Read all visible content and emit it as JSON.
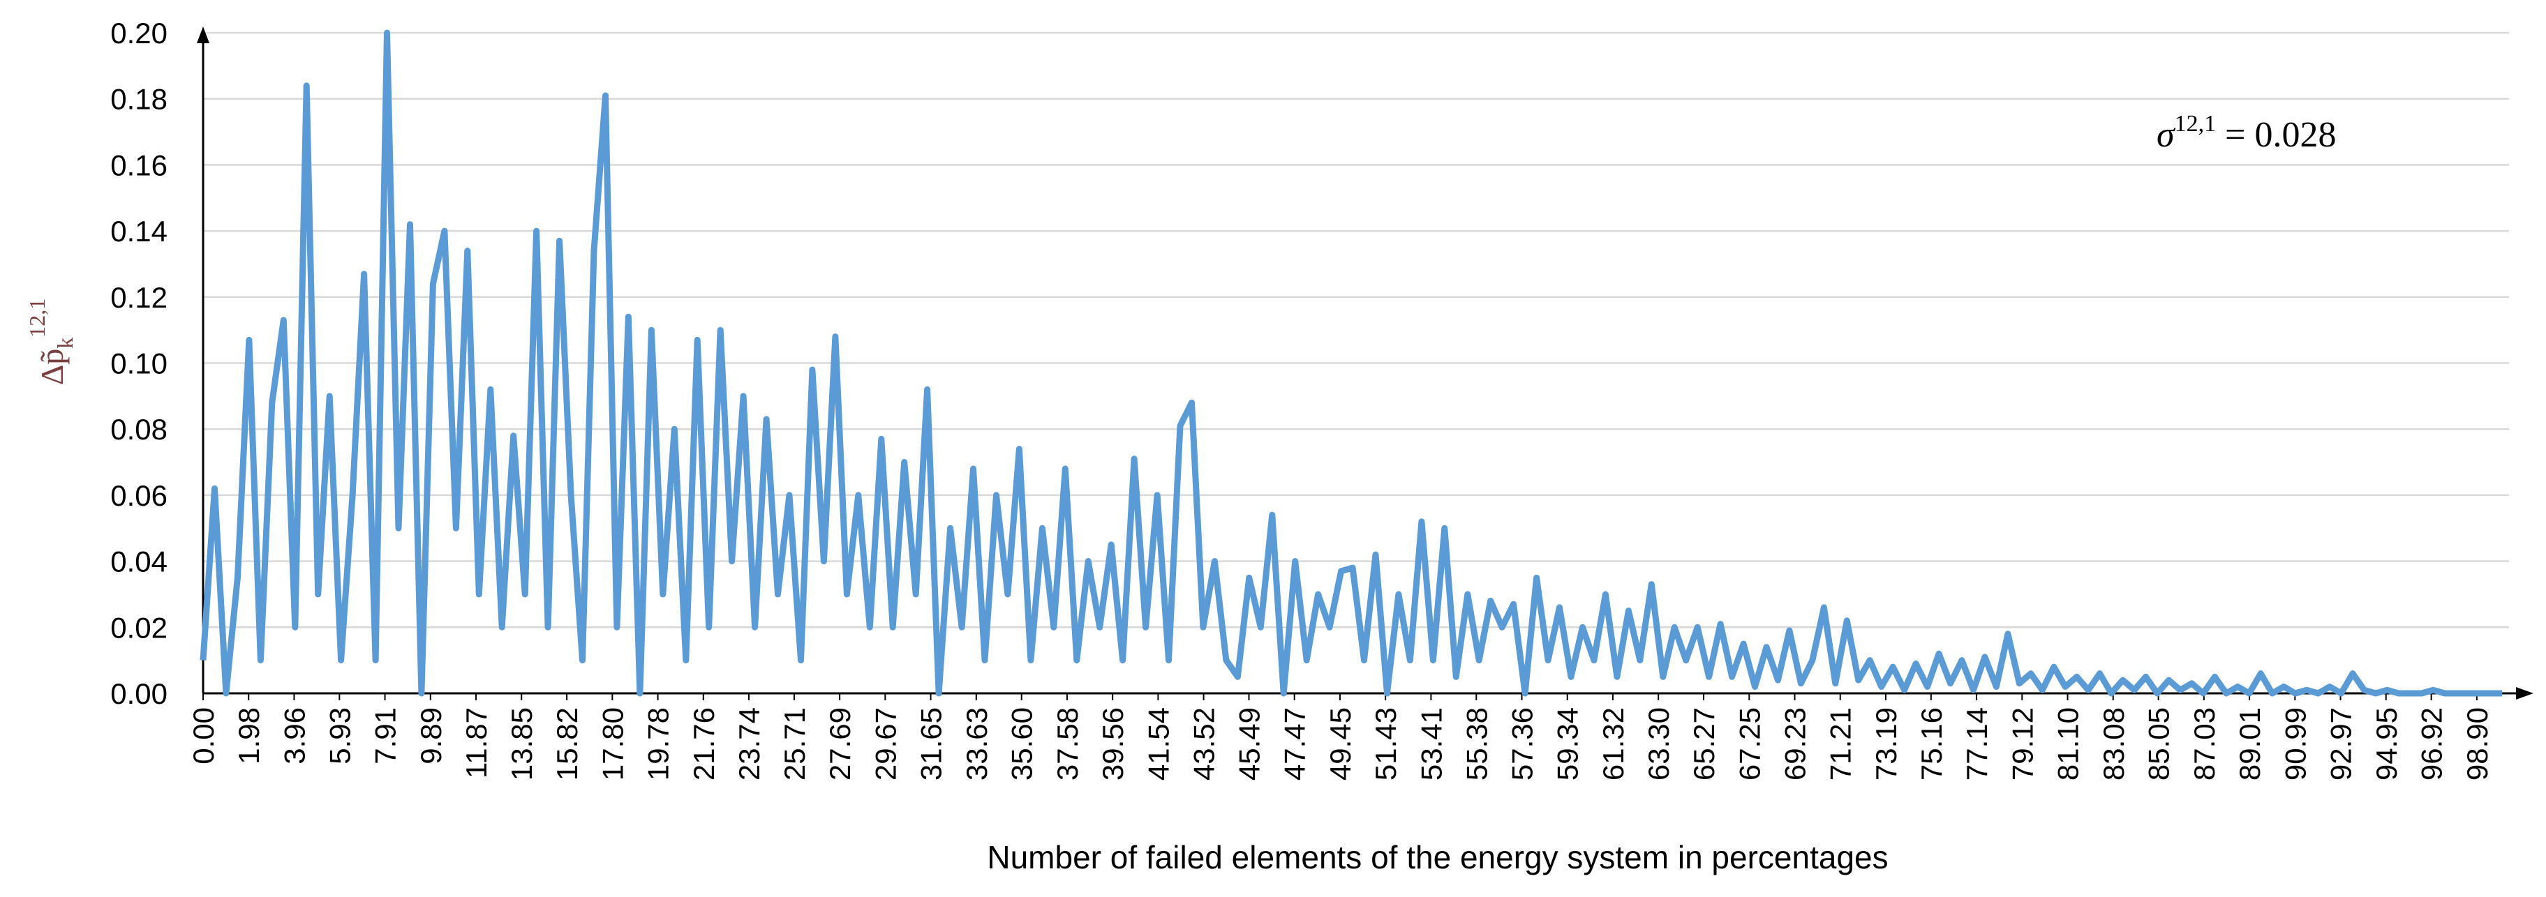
{
  "chart_data": {
    "type": "line",
    "xlabel": "Number  of failed elements of the energy system in percentages",
    "ylabel_parts": [
      "Δp̃",
      "k",
      "12,1"
    ],
    "annotation_parts": [
      "σ",
      "12,1",
      " = 0.028"
    ],
    "xlim": [
      0,
      100.3
    ],
    "ylim": [
      0,
      0.2
    ],
    "yticks": [
      {
        "value": 0,
        "label": "0.00"
      },
      {
        "value": 0.02,
        "label": "0.02"
      },
      {
        "value": 0.04,
        "label": "0.04"
      },
      {
        "value": 0.06,
        "label": "0.06"
      },
      {
        "value": 0.08,
        "label": "0.08"
      },
      {
        "value": 0.1,
        "label": "0.10"
      },
      {
        "value": 0.12,
        "label": "0.12"
      },
      {
        "value": 0.14,
        "label": "0.14"
      },
      {
        "value": 0.16,
        "label": "0.16"
      },
      {
        "value": 0.18,
        "label": "0.18"
      },
      {
        "value": 0.2,
        "label": "0.20"
      }
    ],
    "xticks": [
      {
        "value": 0,
        "label": "0.00"
      },
      {
        "value": 1.98,
        "label": "1.98"
      },
      {
        "value": 3.96,
        "label": "3.96"
      },
      {
        "value": 5.93,
        "label": "5.93"
      },
      {
        "value": 7.91,
        "label": "7.91"
      },
      {
        "value": 9.89,
        "label": "9.89"
      },
      {
        "value": 11.87,
        "label": "11.87"
      },
      {
        "value": 13.85,
        "label": "13.85"
      },
      {
        "value": 15.82,
        "label": "15.82"
      },
      {
        "value": 17.8,
        "label": "17.80"
      },
      {
        "value": 19.78,
        "label": "19.78"
      },
      {
        "value": 21.76,
        "label": "21.76"
      },
      {
        "value": 23.74,
        "label": "23.74"
      },
      {
        "value": 25.71,
        "label": "25.71"
      },
      {
        "value": 27.69,
        "label": "27.69"
      },
      {
        "value": 29.67,
        "label": "29.67"
      },
      {
        "value": 31.65,
        "label": "31.65"
      },
      {
        "value": 33.63,
        "label": "33.63"
      },
      {
        "value": 35.6,
        "label": "35.60"
      },
      {
        "value": 37.58,
        "label": "37.58"
      },
      {
        "value": 39.56,
        "label": "39.56"
      },
      {
        "value": 41.54,
        "label": "41.54"
      },
      {
        "value": 43.52,
        "label": "43.52"
      },
      {
        "value": 45.49,
        "label": "45.49"
      },
      {
        "value": 47.47,
        "label": "47.47"
      },
      {
        "value": 49.45,
        "label": "49.45"
      },
      {
        "value": 51.43,
        "label": "51.43"
      },
      {
        "value": 53.41,
        "label": "53.41"
      },
      {
        "value": 55.38,
        "label": "55.38"
      },
      {
        "value": 57.36,
        "label": "57.36"
      },
      {
        "value": 59.34,
        "label": "59.34"
      },
      {
        "value": 61.32,
        "label": "61.32"
      },
      {
        "value": 63.3,
        "label": "63.30"
      },
      {
        "value": 65.27,
        "label": "65.27"
      },
      {
        "value": 67.25,
        "label": "67.25"
      },
      {
        "value": 69.23,
        "label": "69.23"
      },
      {
        "value": 71.21,
        "label": "71.21"
      },
      {
        "value": 73.19,
        "label": "73.19"
      },
      {
        "value": 75.16,
        "label": "75.16"
      },
      {
        "value": 77.14,
        "label": "77.14"
      },
      {
        "value": 79.12,
        "label": "79.12"
      },
      {
        "value": 81.1,
        "label": "81.10"
      },
      {
        "value": 83.08,
        "label": "83.08"
      },
      {
        "value": 85.05,
        "label": "85.05"
      },
      {
        "value": 87.03,
        "label": "87.03"
      },
      {
        "value": 89.01,
        "label": "89.01"
      },
      {
        "value": 90.99,
        "label": "90.99"
      },
      {
        "value": 92.97,
        "label": "92.97"
      },
      {
        "value": 94.95,
        "label": "94.95"
      },
      {
        "value": 96.92,
        "label": "96.92"
      },
      {
        "value": 98.9,
        "label": "98.90"
      }
    ],
    "grid": true,
    "series": [
      {
        "color": "#5b9bd5",
        "x": [
          0,
          0.5,
          1,
          1.5,
          2,
          2.5,
          3,
          3.5,
          4,
          4.5,
          5,
          5.5,
          6,
          6.5,
          7,
          7.5,
          8,
          8.5,
          9,
          9.5,
          10,
          10.5,
          11,
          11.5,
          12,
          12.5,
          13,
          13.5,
          14,
          14.5,
          15,
          15.5,
          16,
          16.5,
          17,
          17.5,
          18,
          18.5,
          19,
          19.5,
          20,
          20.5,
          21,
          21.5,
          22,
          22.5,
          23,
          23.5,
          24,
          24.5,
          25,
          25.5,
          26,
          26.5,
          27,
          27.5,
          28,
          28.5,
          29,
          29.5,
          30,
          30.5,
          31,
          31.5,
          32,
          32.5,
          33,
          33.5,
          34,
          34.5,
          35,
          35.5,
          36,
          36.5,
          37,
          37.5,
          38,
          38.5,
          39,
          39.5,
          40,
          40.5,
          41,
          41.5,
          42,
          42.5,
          43,
          43.5,
          44,
          44.5,
          45,
          45.5,
          46,
          46.5,
          47,
          47.5,
          48,
          48.5,
          49,
          49.5,
          50,
          50.5,
          51,
          51.5,
          52,
          52.5,
          53,
          53.5,
          54,
          54.5,
          55,
          55.5,
          56,
          56.5,
          57,
          57.5,
          58,
          58.5,
          59,
          59.5,
          60,
          60.5,
          61,
          61.5,
          62,
          62.5,
          63,
          63.5,
          64,
          64.5,
          65,
          65.5,
          66,
          66.5,
          67,
          67.5,
          68,
          68.5,
          69,
          69.5,
          70,
          70.5,
          71,
          71.5,
          72,
          72.5,
          73,
          73.5,
          74,
          74.5,
          75,
          75.5,
          76,
          76.5,
          77,
          77.5,
          78,
          78.5,
          79,
          79.5,
          80,
          80.5,
          81,
          81.5,
          82,
          82.5,
          83,
          83.5,
          84,
          84.5,
          85,
          85.5,
          86,
          86.5,
          87,
          87.5,
          88,
          88.5,
          89,
          89.5,
          90,
          90.5,
          91,
          91.5,
          92,
          92.5,
          93,
          93.5,
          94,
          94.5,
          95,
          95.5,
          96,
          96.5,
          97,
          97.5,
          98,
          98.5,
          99,
          99.5,
          100
        ],
        "values": [
          0.01,
          0.062,
          0.0,
          0.035,
          0.107,
          0.01,
          0.088,
          0.113,
          0.02,
          0.184,
          0.03,
          0.09,
          0.01,
          0.06,
          0.127,
          0.01,
          0.2,
          0.05,
          0.142,
          0.0,
          0.124,
          0.14,
          0.05,
          0.134,
          0.03,
          0.092,
          0.02,
          0.078,
          0.03,
          0.14,
          0.02,
          0.137,
          0.06,
          0.01,
          0.134,
          0.181,
          0.02,
          0.114,
          0.0,
          0.11,
          0.03,
          0.08,
          0.01,
          0.107,
          0.02,
          0.11,
          0.04,
          0.09,
          0.02,
          0.083,
          0.03,
          0.06,
          0.01,
          0.098,
          0.04,
          0.108,
          0.03,
          0.06,
          0.02,
          0.077,
          0.02,
          0.07,
          0.03,
          0.092,
          0.0,
          0.05,
          0.02,
          0.068,
          0.01,
          0.06,
          0.03,
          0.074,
          0.01,
          0.05,
          0.02,
          0.068,
          0.01,
          0.04,
          0.02,
          0.045,
          0.01,
          0.071,
          0.02,
          0.06,
          0.01,
          0.081,
          0.088,
          0.02,
          0.04,
          0.01,
          0.005,
          0.035,
          0.02,
          0.054,
          0.0,
          0.04,
          0.01,
          0.03,
          0.02,
          0.037,
          0.038,
          0.01,
          0.042,
          0.0,
          0.03,
          0.01,
          0.052,
          0.01,
          0.05,
          0.005,
          0.03,
          0.01,
          0.028,
          0.02,
          0.027,
          0.0,
          0.035,
          0.01,
          0.026,
          0.005,
          0.02,
          0.01,
          0.03,
          0.005,
          0.025,
          0.01,
          0.033,
          0.005,
          0.02,
          0.01,
          0.02,
          0.005,
          0.021,
          0.005,
          0.015,
          0.002,
          0.014,
          0.004,
          0.019,
          0.003,
          0.01,
          0.026,
          0.003,
          0.022,
          0.004,
          0.01,
          0.002,
          0.008,
          0.001,
          0.009,
          0.002,
          0.012,
          0.003,
          0.01,
          0.001,
          0.011,
          0.002,
          0.018,
          0.003,
          0.006,
          0.001,
          0.008,
          0.002,
          0.005,
          0.001,
          0.006,
          0.0,
          0.004,
          0.001,
          0.005,
          0.0,
          0.004,
          0.001,
          0.003,
          0.0,
          0.005,
          0.0,
          0.002,
          0.0,
          0.006,
          0.0,
          0.002,
          0.0,
          0.001,
          0.0,
          0.002,
          0.0,
          0.006,
          0.001,
          0.0,
          0.001,
          0.0,
          0.0,
          0.0,
          0.001,
          0.0,
          0.0,
          0.0,
          0.0,
          0.0,
          0.0
        ]
      }
    ]
  }
}
